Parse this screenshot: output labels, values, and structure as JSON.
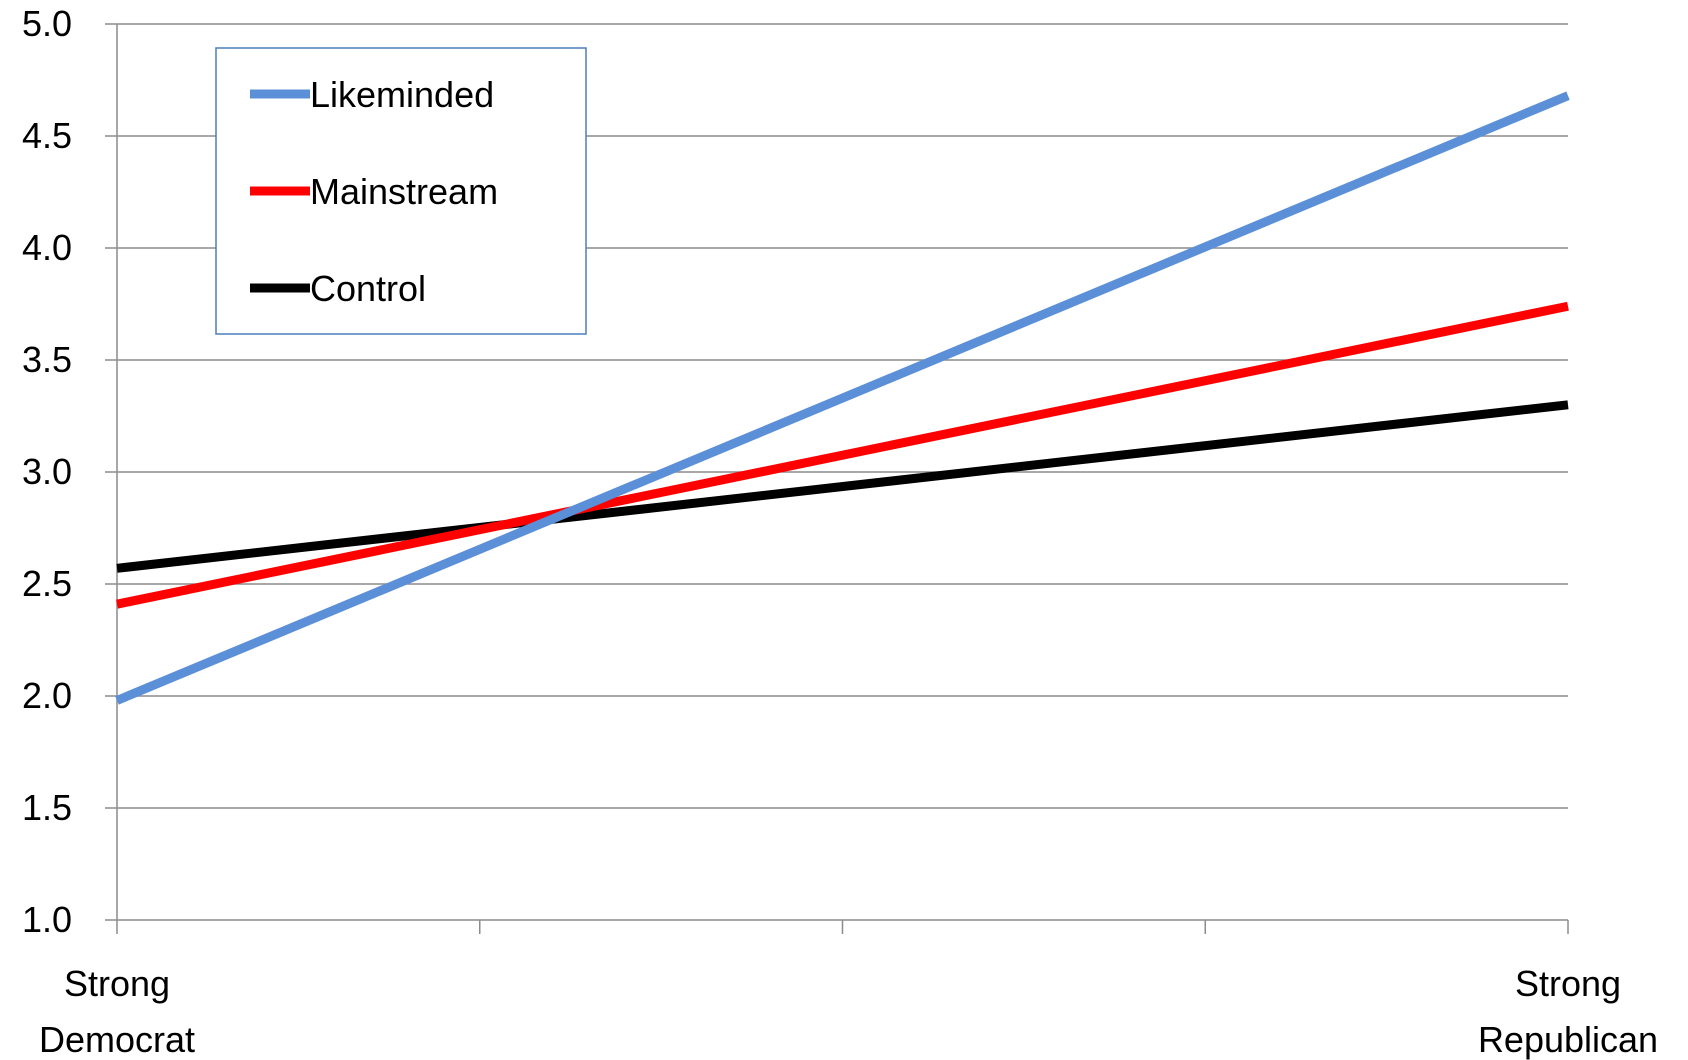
{
  "chart_data": {
    "type": "line",
    "title": "",
    "xlabel": "",
    "ylabel": "",
    "x_categories": [
      [
        "Strong",
        "Democrat"
      ],
      [
        "",
        ""
      ],
      [
        "",
        ""
      ],
      [
        "",
        ""
      ],
      [
        "Strong",
        "Republican"
      ]
    ],
    "x": [
      0,
      1
    ],
    "ylim": [
      1.0,
      5.0
    ],
    "yticks": [
      "1.0",
      "1.5",
      "2.0",
      "2.5",
      "3.0",
      "3.5",
      "4.0",
      "4.5",
      "5.0"
    ],
    "grid": true,
    "legend_position": "top-left",
    "series": [
      {
        "name": "Likeminded",
        "color": "#5B8FD8",
        "values": [
          1.98,
          4.68
        ]
      },
      {
        "name": "Mainstream",
        "color": "#FF0000",
        "values": [
          2.41,
          3.74
        ]
      },
      {
        "name": "Control",
        "color": "#000000",
        "values": [
          2.57,
          3.3
        ]
      }
    ]
  }
}
